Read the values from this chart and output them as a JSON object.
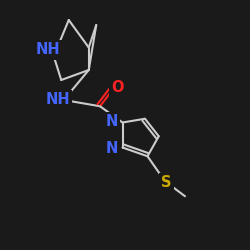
{
  "background": "#1a1a1a",
  "line_color": "#cccccc",
  "atom_colors": {
    "N": "#4466ff",
    "O": "#ff2222",
    "S": "#ccaa00",
    "C": "#cccccc"
  },
  "lw": 1.5,
  "label_fontsize": 10.5
}
